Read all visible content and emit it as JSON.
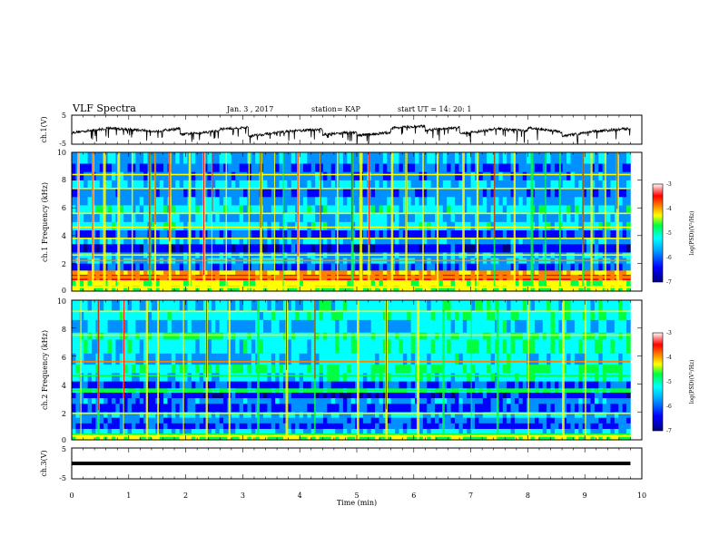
{
  "header": {
    "title": "VLF Spectra",
    "date": "Jan. 3 , 2017",
    "station": "station= KAP",
    "start": "start UT = 14: 20: 1"
  },
  "colors": {
    "scale": [
      "#000080",
      "#0000ff",
      "#0090ff",
      "#00ffff",
      "#00ff40",
      "#ffff00",
      "#ff8000",
      "#ff0000",
      "#ff9090",
      "#ffffff"
    ]
  },
  "chart_data": [
    {
      "type": "line",
      "name": "ch1-waveform",
      "ylabel": "ch.1(V)",
      "ylim": [
        -5,
        5
      ],
      "yticks": [
        "5",
        "-5"
      ],
      "xlim": [
        0,
        10
      ],
      "x_end": 9.8,
      "baseline": 0.3,
      "segments": [
        {
          "x": [
            0,
            0.6
          ],
          "y": [
            0.2,
            1.5
          ]
        },
        {
          "x": [
            0.6,
            1.4
          ],
          "y": [
            1.8,
            0.8
          ]
        },
        {
          "x": [
            1.4,
            1.9
          ],
          "y": [
            0.5,
            1.6
          ]
        },
        {
          "x": [
            1.9,
            2.6
          ],
          "y": [
            -0.5,
            0.8
          ]
        },
        {
          "x": [
            2.6,
            3.1
          ],
          "y": [
            1.4,
            2.0
          ]
        },
        {
          "x": [
            3.1,
            3.8
          ],
          "y": [
            -1.0,
            0.6
          ]
        },
        {
          "x": [
            3.8,
            4.4
          ],
          "y": [
            0.6,
            1.4
          ]
        },
        {
          "x": [
            4.4,
            5.0
          ],
          "y": [
            -0.5,
            0.4
          ]
        },
        {
          "x": [
            5.0,
            5.6
          ],
          "y": [
            -0.8,
            0.2
          ]
        },
        {
          "x": [
            5.6,
            6.2
          ],
          "y": [
            1.8,
            2.4
          ]
        },
        {
          "x": [
            6.2,
            6.8
          ],
          "y": [
            1.0,
            2.0
          ]
        },
        {
          "x": [
            6.8,
            7.4
          ],
          "y": [
            -0.2,
            1.2
          ]
        },
        {
          "x": [
            7.4,
            8.0
          ],
          "y": [
            1.6,
            0.8
          ]
        },
        {
          "x": [
            8.0,
            8.6
          ],
          "y": [
            1.8,
            0.4
          ]
        },
        {
          "x": [
            8.6,
            9.1
          ],
          "y": [
            -1.0,
            0.4
          ]
        },
        {
          "x": [
            9.1,
            9.8
          ],
          "y": [
            0.5,
            1.6
          ]
        }
      ]
    },
    {
      "type": "heatmap",
      "name": "ch1-spectrogram",
      "ylabel": "ch.1 Frequency (kHz)",
      "ylim": [
        0,
        10
      ],
      "yticks": [
        0,
        2,
        4,
        6,
        8,
        10
      ],
      "xlim": [
        0,
        10
      ],
      "x_end": 9.8,
      "zlabel": "log(PSD)(V²/Hz)",
      "zlim": [
        -7,
        -3
      ],
      "zticks": [
        -3,
        -4,
        -5,
        -6,
        -7
      ],
      "bands": [
        {
          "from": 0,
          "to": 0.4,
          "level": 4.6
        },
        {
          "from": 0.4,
          "to": 0.8,
          "level": 4.8
        },
        {
          "from": 0.8,
          "to": 1.2,
          "level": 6.8
        },
        {
          "from": 1.2,
          "to": 1.5,
          "level": 5.6
        },
        {
          "from": 1.5,
          "to": 2.0,
          "level": 1.5
        },
        {
          "from": 2.0,
          "to": 2.4,
          "level": 2.6
        },
        {
          "from": 2.4,
          "to": 2.8,
          "level": 2.2
        },
        {
          "from": 2.8,
          "to": 3.4,
          "level": 0.9
        },
        {
          "from": 3.4,
          "to": 3.8,
          "level": 2.3
        },
        {
          "from": 3.8,
          "to": 4.4,
          "level": 1.3
        },
        {
          "from": 4.4,
          "to": 5.0,
          "level": 2.9
        },
        {
          "from": 5.0,
          "to": 5.6,
          "level": 2.2
        },
        {
          "from": 5.6,
          "to": 6.2,
          "level": 3.0
        },
        {
          "from": 6.2,
          "to": 6.8,
          "level": 2.2
        },
        {
          "from": 6.8,
          "to": 7.4,
          "level": 1.8
        },
        {
          "from": 7.4,
          "to": 8.0,
          "level": 2.5
        },
        {
          "from": 8.0,
          "to": 8.6,
          "level": 2.0
        },
        {
          "from": 8.6,
          "to": 9.2,
          "level": 1.6
        },
        {
          "from": 9.2,
          "to": 10.0,
          "level": 2.2
        }
      ],
      "strong_lines_khz": [
        0.95,
        1.05,
        2.2,
        2.6,
        3.8,
        4.6,
        5.6,
        7.4,
        8.4
      ],
      "bursts_min": [
        0.1,
        0.35,
        0.55,
        0.8,
        1.05,
        1.35,
        1.45,
        1.7,
        2.05,
        2.3,
        2.45,
        2.7,
        3.1,
        3.3,
        3.55,
        3.7,
        3.95,
        4.35,
        4.65,
        4.9,
        5.05,
        5.2,
        5.6,
        5.85,
        6.15,
        6.4,
        6.85,
        7.1,
        7.4,
        7.75,
        8.05,
        8.3,
        8.55,
        8.95,
        9.1,
        9.35,
        9.55
      ]
    },
    {
      "type": "heatmap",
      "name": "ch2-spectrogram",
      "ylabel": "ch.2 Frequency (kHz)",
      "ylim": [
        0,
        10
      ],
      "yticks": [
        0,
        2,
        4,
        6,
        8,
        10
      ],
      "xlim": [
        0,
        10
      ],
      "x_end": 9.8,
      "zlabel": "log(PSD)(V²/Hz)",
      "zlim": [
        -7,
        -3
      ],
      "zticks": [
        -3,
        -4,
        -5,
        -6,
        -7
      ],
      "bands": [
        {
          "from": 0,
          "to": 0.4,
          "level": 4.4
        },
        {
          "from": 0.4,
          "to": 0.8,
          "level": 2.6
        },
        {
          "from": 0.8,
          "to": 1.2,
          "level": 1.2
        },
        {
          "from": 1.2,
          "to": 1.6,
          "level": 1.8
        },
        {
          "from": 1.6,
          "to": 2.0,
          "level": 2.6
        },
        {
          "from": 2.0,
          "to": 2.6,
          "level": 1.3
        },
        {
          "from": 2.6,
          "to": 3.0,
          "level": 2.0
        },
        {
          "from": 3.0,
          "to": 3.4,
          "level": 1.0
        },
        {
          "from": 3.4,
          "to": 3.7,
          "level": 3.8
        },
        {
          "from": 3.7,
          "to": 4.2,
          "level": 1.4
        },
        {
          "from": 4.2,
          "to": 4.8,
          "level": 2.6
        },
        {
          "from": 4.8,
          "to": 5.4,
          "level": 3.4
        },
        {
          "from": 5.4,
          "to": 6.2,
          "level": 2.3
        },
        {
          "from": 6.2,
          "to": 7.2,
          "level": 2.9
        },
        {
          "from": 7.2,
          "to": 7.7,
          "level": 3.3
        },
        {
          "from": 7.7,
          "to": 8.6,
          "level": 2.2
        },
        {
          "from": 8.6,
          "to": 9.2,
          "level": 3.1
        },
        {
          "from": 9.2,
          "to": 10.0,
          "level": 2.6
        }
      ],
      "late_level": 3.0,
      "late_start_min": 4.2,
      "strong_lines_khz": [
        0.4,
        1.9,
        3.55,
        4.6,
        5.6,
        7.5,
        9.2
      ],
      "bursts_min": [
        0.15,
        0.45,
        0.9,
        1.3,
        1.5,
        1.95,
        2.35,
        2.75,
        3.25,
        3.75,
        4.25,
        5.0,
        5.5,
        6.05,
        6.5,
        7.0,
        7.45,
        8.0,
        8.6,
        9.0
      ]
    },
    {
      "type": "line",
      "name": "ch3-waveform",
      "ylabel": "ch.3(V)",
      "ylim": [
        -5,
        5
      ],
      "yticks": [
        "5",
        "-5"
      ],
      "xlim": [
        0,
        10
      ],
      "x_end": 9.8,
      "value": 0,
      "xlabel": "Time (min)",
      "xticks": [
        0,
        1,
        2,
        3,
        4,
        5,
        6,
        7,
        8,
        9,
        10
      ]
    }
  ]
}
